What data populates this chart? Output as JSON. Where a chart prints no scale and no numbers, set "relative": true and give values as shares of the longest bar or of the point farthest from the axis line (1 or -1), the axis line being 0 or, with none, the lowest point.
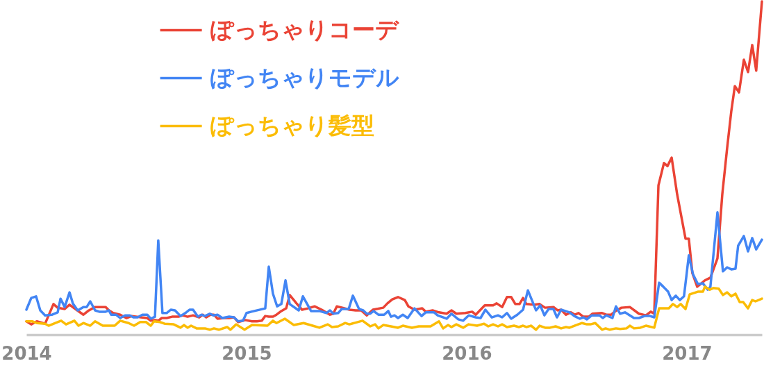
{
  "chart_data": {
    "type": "line",
    "relative": true,
    "legend": "top left",
    "xlim": [
      2014,
      2017.341
    ],
    "xticks": [
      2014,
      2015,
      2016,
      2017
    ],
    "series": [
      {
        "name": "ぽっちゃりコーデ",
        "color": "#ea4335",
        "x": [
          2014.0,
          2014.022,
          2014.047,
          2014.085,
          2014.123,
          2014.142,
          2014.174,
          2014.196,
          2014.227,
          2014.259,
          2014.284,
          2014.312,
          2014.36,
          2014.375,
          2014.394,
          2014.426,
          2014.454,
          2014.479,
          2014.521,
          2014.549,
          2014.565,
          2014.584,
          2014.599,
          2014.615,
          2014.637,
          2014.662,
          2014.691,
          2014.71,
          2014.732,
          2014.757,
          2014.785,
          2014.801,
          2014.817,
          2014.836,
          2014.852,
          2014.868,
          2014.896,
          2014.921,
          2014.943,
          2014.962,
          2014.994,
          2015.025,
          2015.047,
          2015.069,
          2015.085,
          2015.101,
          2015.12,
          2015.136,
          2015.158,
          2015.18,
          2015.196,
          2015.227,
          2015.252,
          2015.278,
          2015.309,
          2015.341,
          2015.379,
          2015.394,
          2015.41,
          2015.435,
          2015.467,
          2015.495,
          2015.521,
          2015.546,
          2015.574,
          2015.621,
          2015.64,
          2015.662,
          2015.688,
          2015.719,
          2015.735,
          2015.763,
          2015.798,
          2015.814,
          2015.845,
          2015.874,
          2015.909,
          2015.931,
          2015.953,
          2015.994,
          2016.025,
          2016.041,
          2016.082,
          2016.12,
          2016.136,
          2016.161,
          2016.183,
          2016.202,
          2016.221,
          2016.24,
          2016.256,
          2016.271,
          2016.309,
          2016.331,
          2016.356,
          2016.394,
          2016.413,
          2016.429,
          2016.451,
          2016.473,
          2016.492,
          2016.508,
          2016.53,
          2016.555,
          2016.571,
          2016.615,
          2016.634,
          2016.656,
          2016.681,
          2016.703,
          2016.741,
          2016.782,
          2016.814,
          2016.836,
          2016.852,
          2016.871,
          2016.896,
          2016.912,
          2016.931,
          2016.956,
          2016.994,
          2017.009,
          2017.025,
          2017.047,
          2017.066,
          2017.082,
          2017.107,
          2017.139,
          2017.161,
          2017.183,
          2017.202,
          2017.218,
          2017.237,
          2017.259,
          2017.278,
          2017.297,
          2017.315,
          2017.341
        ],
        "values": [
          0.04,
          0.031,
          0.04,
          0.033,
          0.092,
          0.081,
          0.077,
          0.09,
          0.075,
          0.06,
          0.073,
          0.083,
          0.083,
          0.073,
          0.065,
          0.06,
          0.05,
          0.056,
          0.052,
          0.05,
          0.042,
          0.044,
          0.042,
          0.05,
          0.05,
          0.054,
          0.054,
          0.058,
          0.054,
          0.058,
          0.052,
          0.06,
          0.052,
          0.06,
          0.06,
          0.048,
          0.05,
          0.05,
          0.052,
          0.038,
          0.044,
          0.04,
          0.04,
          0.042,
          0.056,
          0.054,
          0.054,
          0.06,
          0.071,
          0.079,
          0.119,
          0.094,
          0.075,
          0.079,
          0.085,
          0.075,
          0.06,
          0.063,
          0.085,
          0.081,
          0.075,
          0.073,
          0.073,
          0.058,
          0.075,
          0.081,
          0.094,
          0.106,
          0.113,
          0.104,
          0.085,
          0.075,
          0.079,
          0.069,
          0.073,
          0.067,
          0.063,
          0.073,
          0.063,
          0.065,
          0.069,
          0.06,
          0.088,
          0.088,
          0.094,
          0.083,
          0.113,
          0.113,
          0.092,
          0.092,
          0.11,
          0.092,
          0.09,
          0.092,
          0.081,
          0.083,
          0.073,
          0.075,
          0.06,
          0.067,
          0.06,
          0.065,
          0.054,
          0.054,
          0.063,
          0.065,
          0.06,
          0.06,
          0.073,
          0.081,
          0.083,
          0.063,
          0.058,
          0.069,
          0.063,
          0.448,
          0.515,
          0.506,
          0.531,
          0.421,
          0.288,
          0.288,
          0.185,
          0.144,
          0.154,
          0.163,
          0.171,
          0.229,
          0.421,
          0.56,
          0.671,
          0.746,
          0.727,
          0.825,
          0.788,
          0.869,
          0.792,
          1.0
        ]
      },
      {
        "name": "ぽっちゃりモデル",
        "color": "#4285f4",
        "x": [
          2014.0,
          2014.022,
          2014.044,
          2014.063,
          2014.085,
          2014.117,
          2014.142,
          2014.155,
          2014.174,
          2014.196,
          2014.211,
          2014.233,
          2014.259,
          2014.274,
          2014.29,
          2014.312,
          2014.331,
          2014.36,
          2014.375,
          2014.385,
          2014.407,
          2014.426,
          2014.448,
          2014.47,
          2014.486,
          2014.505,
          2014.527,
          2014.549,
          2014.565,
          2014.584,
          2014.599,
          2014.618,
          2014.637,
          2014.656,
          2014.675,
          2014.7,
          2014.722,
          2014.741,
          2014.757,
          2014.779,
          2014.795,
          2014.811,
          2014.833,
          2014.849,
          2014.868,
          2014.89,
          2014.921,
          2014.943,
          2014.962,
          2014.984,
          2015.0,
          2015.022,
          2015.085,
          2015.101,
          2015.12,
          2015.139,
          2015.158,
          2015.177,
          2015.196,
          2015.237,
          2015.256,
          2015.293,
          2015.331,
          2015.363,
          2015.379,
          2015.394,
          2015.416,
          2015.432,
          2015.464,
          2015.483,
          2015.511,
          2015.53,
          2015.546,
          2015.562,
          2015.577,
          2015.599,
          2015.625,
          2015.644,
          2015.656,
          2015.672,
          2015.688,
          2015.71,
          2015.732,
          2015.763,
          2015.795,
          2015.814,
          2015.852,
          2015.868,
          2015.909,
          2015.931,
          2015.962,
          2015.984,
          2016.009,
          2016.041,
          2016.063,
          2016.085,
          2016.114,
          2016.142,
          2016.161,
          2016.183,
          2016.202,
          2016.23,
          2016.256,
          2016.278,
          2016.315,
          2016.334,
          2016.353,
          2016.372,
          2016.394,
          2016.41,
          2016.429,
          2016.467,
          2016.489,
          2016.514,
          2016.53,
          2016.546,
          2016.568,
          2016.603,
          2016.618,
          2016.634,
          2016.662,
          2016.678,
          2016.697,
          2016.719,
          2016.76,
          2016.782,
          2016.808,
          2016.833,
          2016.852,
          2016.874,
          2016.893,
          2016.915,
          2016.931,
          2016.95,
          2016.968,
          2016.987,
          2017.009,
          2017.028,
          2017.05,
          2017.073,
          2017.095,
          2017.107,
          2017.139,
          2017.164,
          2017.183,
          2017.202,
          2017.221,
          2017.233,
          2017.259,
          2017.278,
          2017.297,
          2017.315,
          2017.341
        ],
        "values": [
          0.075,
          0.11,
          0.115,
          0.073,
          0.058,
          0.06,
          0.067,
          0.108,
          0.083,
          0.127,
          0.094,
          0.073,
          0.083,
          0.083,
          0.1,
          0.073,
          0.069,
          0.069,
          0.073,
          0.06,
          0.06,
          0.05,
          0.058,
          0.058,
          0.052,
          0.052,
          0.06,
          0.06,
          0.048,
          0.054,
          0.283,
          0.065,
          0.065,
          0.075,
          0.073,
          0.056,
          0.065,
          0.075,
          0.075,
          0.054,
          0.06,
          0.056,
          0.063,
          0.058,
          0.06,
          0.05,
          0.054,
          0.052,
          0.04,
          0.042,
          0.065,
          0.069,
          0.079,
          0.204,
          0.123,
          0.085,
          0.092,
          0.163,
          0.092,
          0.073,
          0.115,
          0.071,
          0.071,
          0.065,
          0.073,
          0.063,
          0.065,
          0.077,
          0.077,
          0.117,
          0.077,
          0.073,
          0.063,
          0.063,
          0.071,
          0.06,
          0.06,
          0.071,
          0.054,
          0.058,
          0.05,
          0.06,
          0.05,
          0.079,
          0.056,
          0.067,
          0.067,
          0.058,
          0.048,
          0.063,
          0.046,
          0.042,
          0.058,
          0.052,
          0.05,
          0.075,
          0.052,
          0.058,
          0.052,
          0.065,
          0.048,
          0.06,
          0.075,
          0.133,
          0.073,
          0.088,
          0.058,
          0.077,
          0.077,
          0.052,
          0.075,
          0.067,
          0.056,
          0.048,
          0.052,
          0.046,
          0.058,
          0.058,
          0.05,
          0.058,
          0.05,
          0.085,
          0.063,
          0.067,
          0.05,
          0.05,
          0.056,
          0.056,
          0.052,
          0.156,
          0.144,
          0.129,
          0.104,
          0.117,
          0.104,
          0.115,
          0.238,
          0.181,
          0.152,
          0.154,
          0.135,
          0.144,
          0.367,
          0.19,
          0.202,
          0.196,
          0.198,
          0.267,
          0.296,
          0.25,
          0.29,
          0.256,
          0.285
        ]
      },
      {
        "name": "ぽっちゃり髪型",
        "color": "#fbbc04",
        "x": [
          2014.0,
          2014.028,
          2014.047,
          2014.085,
          2014.101,
          2014.132,
          2014.158,
          2014.18,
          2014.218,
          2014.237,
          2014.259,
          2014.29,
          2014.312,
          2014.347,
          2014.401,
          2014.426,
          2014.464,
          2014.489,
          2014.517,
          2014.543,
          2014.565,
          2014.58,
          2014.606,
          2014.628,
          2014.669,
          2014.7,
          2014.716,
          2014.732,
          2014.748,
          2014.773,
          2014.811,
          2014.833,
          2014.852,
          2014.874,
          2014.912,
          2014.927,
          2014.953,
          2014.991,
          2015.025,
          2015.095,
          2015.12,
          2015.136,
          2015.174,
          2015.215,
          2015.259,
          2015.3,
          2015.331,
          2015.369,
          2015.388,
          2015.416,
          2015.448,
          2015.467,
          2015.527,
          2015.562,
          2015.584,
          2015.599,
          2015.621,
          2015.656,
          2015.688,
          2015.71,
          2015.751,
          2015.782,
          2015.836,
          2015.874,
          2015.893,
          2015.915,
          2015.931,
          2015.953,
          2015.984,
          2016.009,
          2016.047,
          2016.079,
          2016.098,
          2016.12,
          2016.142,
          2016.161,
          2016.183,
          2016.215,
          2016.237,
          2016.256,
          2016.271,
          2016.293,
          2016.315,
          2016.331,
          2016.356,
          2016.379,
          2016.404,
          2016.429,
          2016.451,
          2016.467,
          2016.498,
          2016.524,
          2016.546,
          2016.562,
          2016.584,
          2016.615,
          2016.631,
          2016.65,
          2016.678,
          2016.697,
          2016.726,
          2016.741,
          2016.76,
          2016.789,
          2016.814,
          2016.852,
          2016.874,
          2016.918,
          2016.937,
          2016.956,
          2016.972,
          2016.994,
          2017.013,
          2017.05,
          2017.073,
          2017.082,
          2017.104,
          2017.12,
          2017.145,
          2017.164,
          2017.183,
          2017.202,
          2017.221,
          2017.24,
          2017.256,
          2017.278,
          2017.297,
          2017.312,
          2017.341
        ],
        "values": [
          0.04,
          0.04,
          0.035,
          0.033,
          0.027,
          0.035,
          0.042,
          0.031,
          0.042,
          0.027,
          0.035,
          0.027,
          0.04,
          0.027,
          0.027,
          0.042,
          0.035,
          0.027,
          0.038,
          0.038,
          0.027,
          0.04,
          0.038,
          0.033,
          0.031,
          0.021,
          0.029,
          0.021,
          0.027,
          0.019,
          0.019,
          0.015,
          0.019,
          0.015,
          0.023,
          0.015,
          0.031,
          0.015,
          0.029,
          0.027,
          0.042,
          0.035,
          0.048,
          0.029,
          0.035,
          0.027,
          0.021,
          0.031,
          0.023,
          0.025,
          0.035,
          0.031,
          0.042,
          0.025,
          0.031,
          0.019,
          0.029,
          0.025,
          0.021,
          0.027,
          0.021,
          0.025,
          0.025,
          0.04,
          0.019,
          0.029,
          0.023,
          0.031,
          0.021,
          0.031,
          0.027,
          0.033,
          0.025,
          0.031,
          0.025,
          0.031,
          0.023,
          0.027,
          0.023,
          0.027,
          0.023,
          0.027,
          0.015,
          0.027,
          0.021,
          0.021,
          0.025,
          0.019,
          0.023,
          0.021,
          0.029,
          0.035,
          0.031,
          0.031,
          0.035,
          0.015,
          0.019,
          0.015,
          0.019,
          0.017,
          0.019,
          0.027,
          0.019,
          0.021,
          0.027,
          0.021,
          0.079,
          0.079,
          0.092,
          0.083,
          0.092,
          0.077,
          0.121,
          0.129,
          0.129,
          0.144,
          0.135,
          0.14,
          0.138,
          0.119,
          0.127,
          0.115,
          0.123,
          0.098,
          0.098,
          0.079,
          0.104,
          0.1,
          0.108
        ]
      }
    ]
  }
}
